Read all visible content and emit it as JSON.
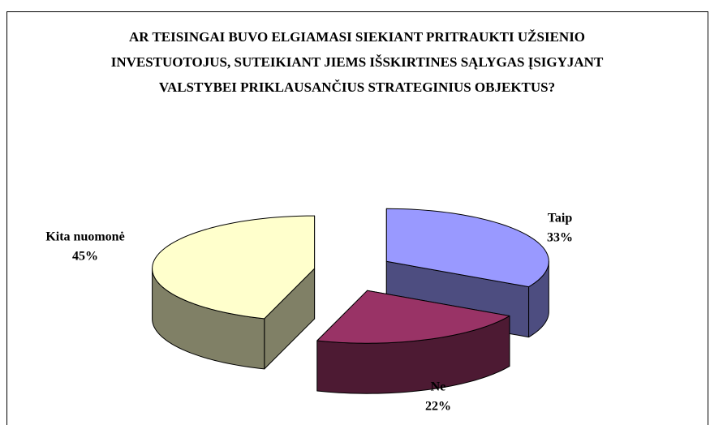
{
  "chart_data": {
    "type": "pie3d",
    "title": "AR TEISINGAI BUVO ELGIAMASI SIEKIANT PRITRAUKTI UŽSIENIO INVESTUOTOJUS, SUTEIKIANT JIEMS IŠSKIRTINES SĄLYGAS ĮSIGYJANT VALSTYBEI PRIKLAUSANČIUS STRATEGINIUS OBJEKTUS?",
    "categories": [
      "Taip",
      "Ne",
      "Kita nuomonė"
    ],
    "values": [
      33,
      22,
      45
    ],
    "value_labels": [
      "33%",
      "22%",
      "45%"
    ],
    "colors": [
      "#9999ff",
      "#993366",
      "#ffffcc"
    ]
  }
}
